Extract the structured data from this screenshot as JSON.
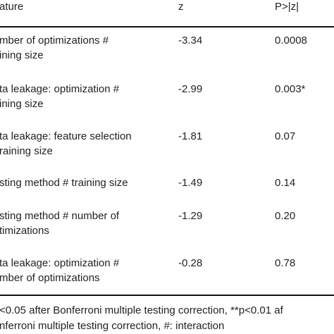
{
  "table": {
    "header": [
      "ature",
      "z",
      "P>|z|"
    ],
    "rows": [
      {
        "feature": [
          "mber of optimizations #",
          "ining size"
        ],
        "z": "-3.34",
        "p": "0.0008"
      },
      {
        "feature": [
          "ta leakage: optimization #",
          "ining size"
        ],
        "z": "-2.99",
        "p": "0.003*"
      },
      {
        "feature": [
          "ta leakage: feature selection",
          "raining size"
        ],
        "z": "-1.81",
        "p": "0.07"
      },
      {
        "feature": [
          "sting method # training size"
        ],
        "z": "-1.49",
        "p": "0.14"
      },
      {
        "feature": [
          "sting method # number of",
          "timizations"
        ],
        "z": "-1.29",
        "p": "0.20"
      },
      {
        "feature": [
          "ta leakage: optimization #",
          "mber of optimizations"
        ],
        "z": "-0.28",
        "p": "0.78"
      }
    ],
    "footnote": [
      "<0.05 after Bonferroni multiple testing correction, **p<0.01 af",
      "nferroni multiple testing correction, #: interaction"
    ]
  }
}
